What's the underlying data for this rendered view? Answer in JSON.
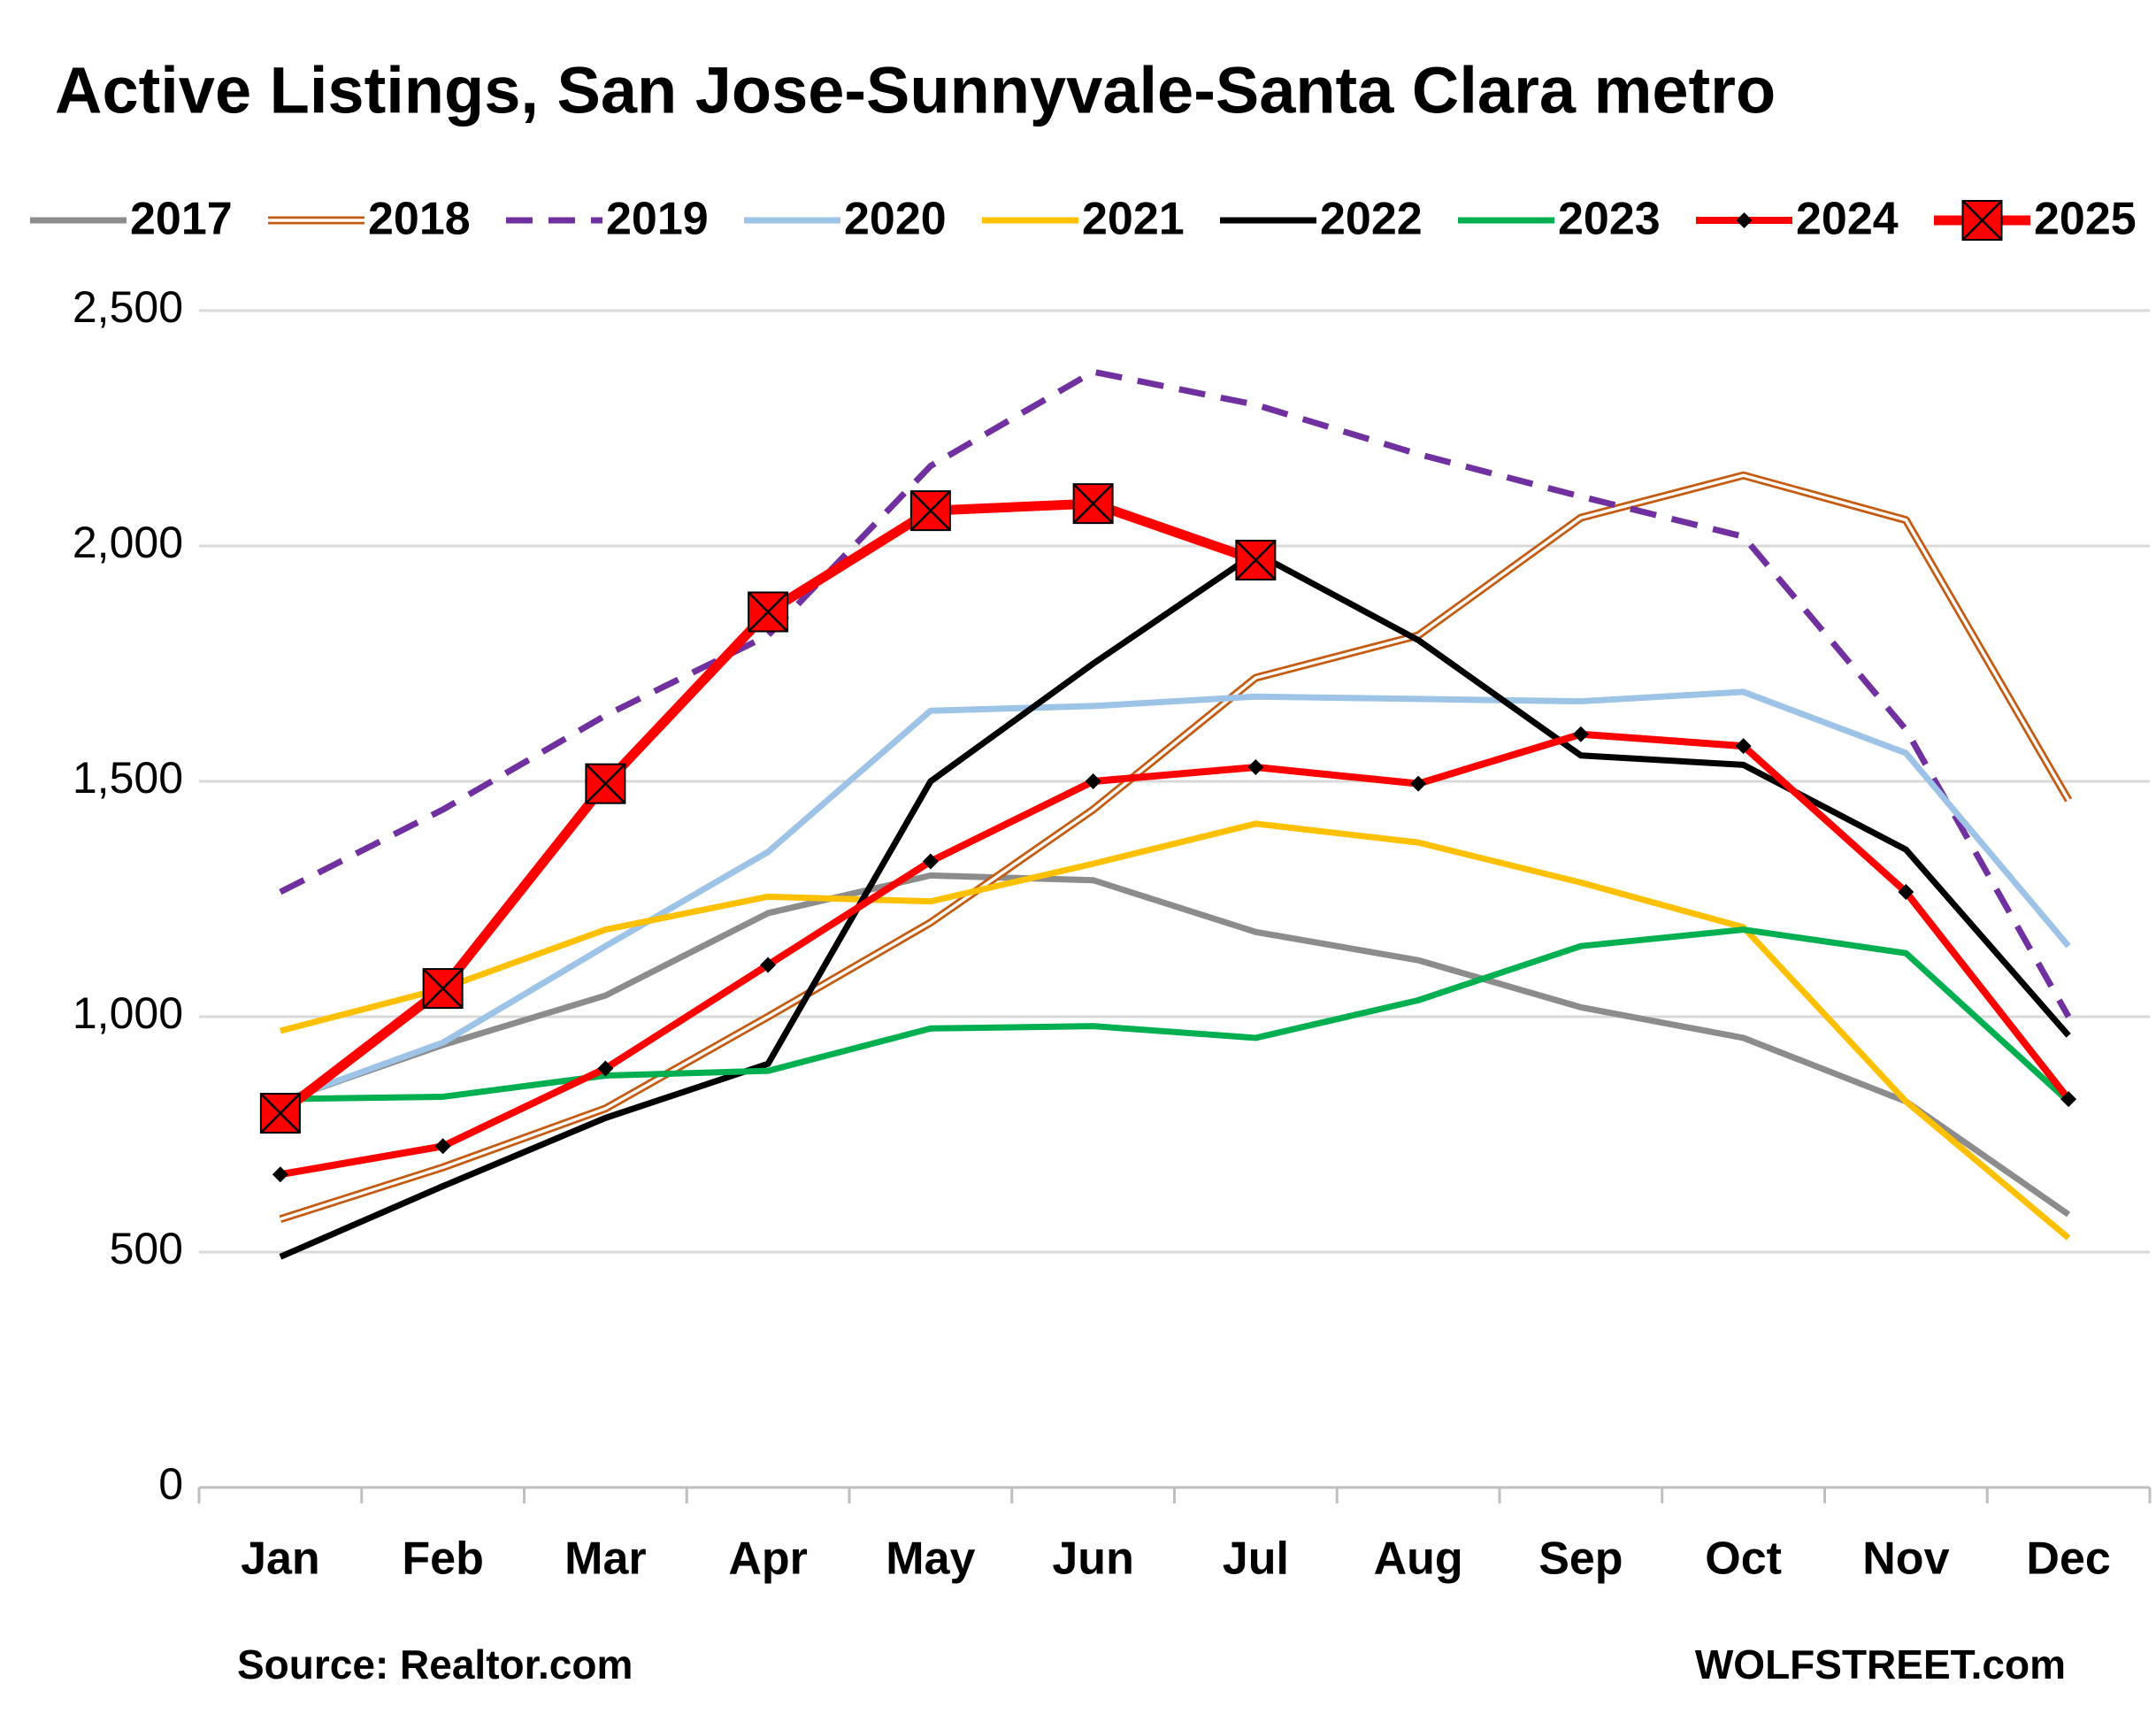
{
  "chart_data": {
    "type": "line",
    "title": "Active Listings, San Jose-Sunnyvale-Santa Clara metro",
    "source": "Source: Realtor.com",
    "credit": "WOLFSTREET.com",
    "categories": [
      "Jan",
      "Feb",
      "Mar",
      "Apr",
      "May",
      "Jun",
      "Jul",
      "Aug",
      "Sep",
      "Oct",
      "Nov",
      "Dec"
    ],
    "ylim": [
      0,
      2500
    ],
    "yticks": [
      0,
      500,
      {
        "value": 1000,
        "label": "1,000"
      },
      {
        "value": 1500,
        "label": "1,500"
      },
      {
        "value": 2000,
        "label": "2,000"
      },
      {
        "value": 2500,
        "label": "2,500"
      }
    ],
    "grid": true,
    "legend": "top",
    "series": [
      {
        "name": "2017",
        "color": "#8c8c8c",
        "values": [
          820,
          940,
          1045,
          1220,
          1300,
          1290,
          1180,
          1120,
          1020,
          955,
          820,
          580
        ]
      },
      {
        "name": "2018",
        "color": "#c55a11",
        "double": true,
        "values": [
          570,
          680,
          805,
          1000,
          1200,
          1440,
          1720,
          1810,
          2060,
          2150,
          2055,
          1460
        ]
      },
      {
        "name": "2019",
        "color": "#7030a0",
        "dashed": true,
        "values": [
          1265,
          1440,
          1640,
          1810,
          2170,
          2370,
          2300,
          2195,
          2105,
          2020,
          1610,
          1000
        ]
      },
      {
        "name": "2020",
        "color": "#9dc3e6",
        "values": [
          820,
          945,
          1150,
          1350,
          1650,
          1660,
          1680,
          1675,
          1670,
          1690,
          1560,
          1150
        ]
      },
      {
        "name": "2021",
        "color": "#ffc000",
        "values": [
          970,
          1060,
          1185,
          1255,
          1245,
          1325,
          1410,
          1370,
          1285,
          1190,
          820,
          530
        ]
      },
      {
        "name": "2022",
        "color": "#000000",
        "values": [
          490,
          640,
          785,
          900,
          1500,
          1750,
          1985,
          1800,
          1555,
          1535,
          1355,
          960
        ]
      },
      {
        "name": "2023",
        "color": "#00b050",
        "values": [
          825,
          830,
          875,
          885,
          975,
          980,
          955,
          1035,
          1150,
          1185,
          1135,
          820
        ]
      },
      {
        "name": "2024",
        "color": "#ff0000",
        "marker": "diamond",
        "values": [
          665,
          725,
          890,
          1110,
          1330,
          1500,
          1530,
          1495,
          1600,
          1575,
          1265,
          825
        ]
      },
      {
        "name": "2025",
        "color": "#ff0000",
        "marker": "square-x",
        "values": [
          795,
          1060,
          1495,
          1860,
          2075,
          2090,
          1970,
          null,
          null,
          null,
          null,
          null
        ]
      }
    ]
  }
}
